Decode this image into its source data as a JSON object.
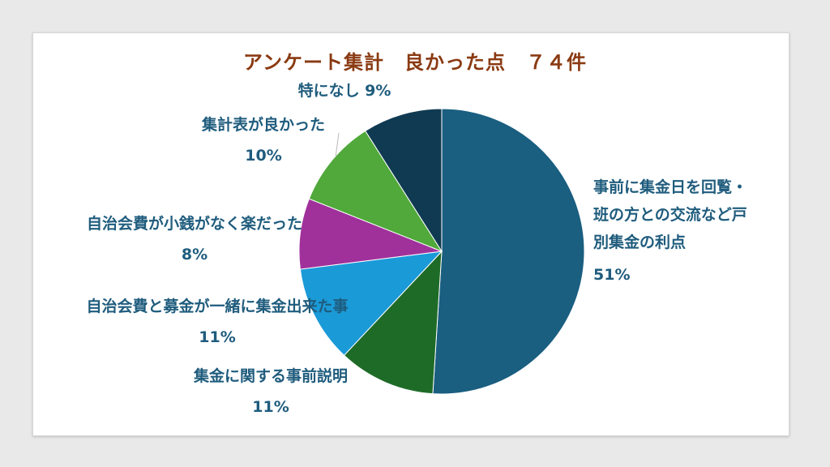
{
  "chart_data": {
    "type": "pie",
    "title": "アンケート集計　良かった点　７４件",
    "slices": [
      {
        "label": [
          "事前に集金日を回覧・",
          "班の方との交流など戸",
          "別集金の利点"
        ],
        "pct_label": "51%",
        "value": 51,
        "color": "#1a5e80"
      },
      {
        "label": [
          "集金に関する事前説明"
        ],
        "pct_label": "11%",
        "value": 11,
        "color": "#1e6b28"
      },
      {
        "label": [
          "自治会費と募金が一緒に集金出来た事"
        ],
        "pct_label": "11%",
        "value": 11,
        "color": "#1b9ad8"
      },
      {
        "label": [
          "自治会費が小銭がなく楽だった"
        ],
        "pct_label": "8%",
        "value": 8,
        "color": "#a0319b"
      },
      {
        "label": [
          "集計表が良かった"
        ],
        "pct_label": "10%",
        "value": 10,
        "color": "#50a93a"
      },
      {
        "label": [
          "特になし"
        ],
        "pct_label": "9%",
        "value": 9,
        "color": "#103a52"
      }
    ]
  }
}
